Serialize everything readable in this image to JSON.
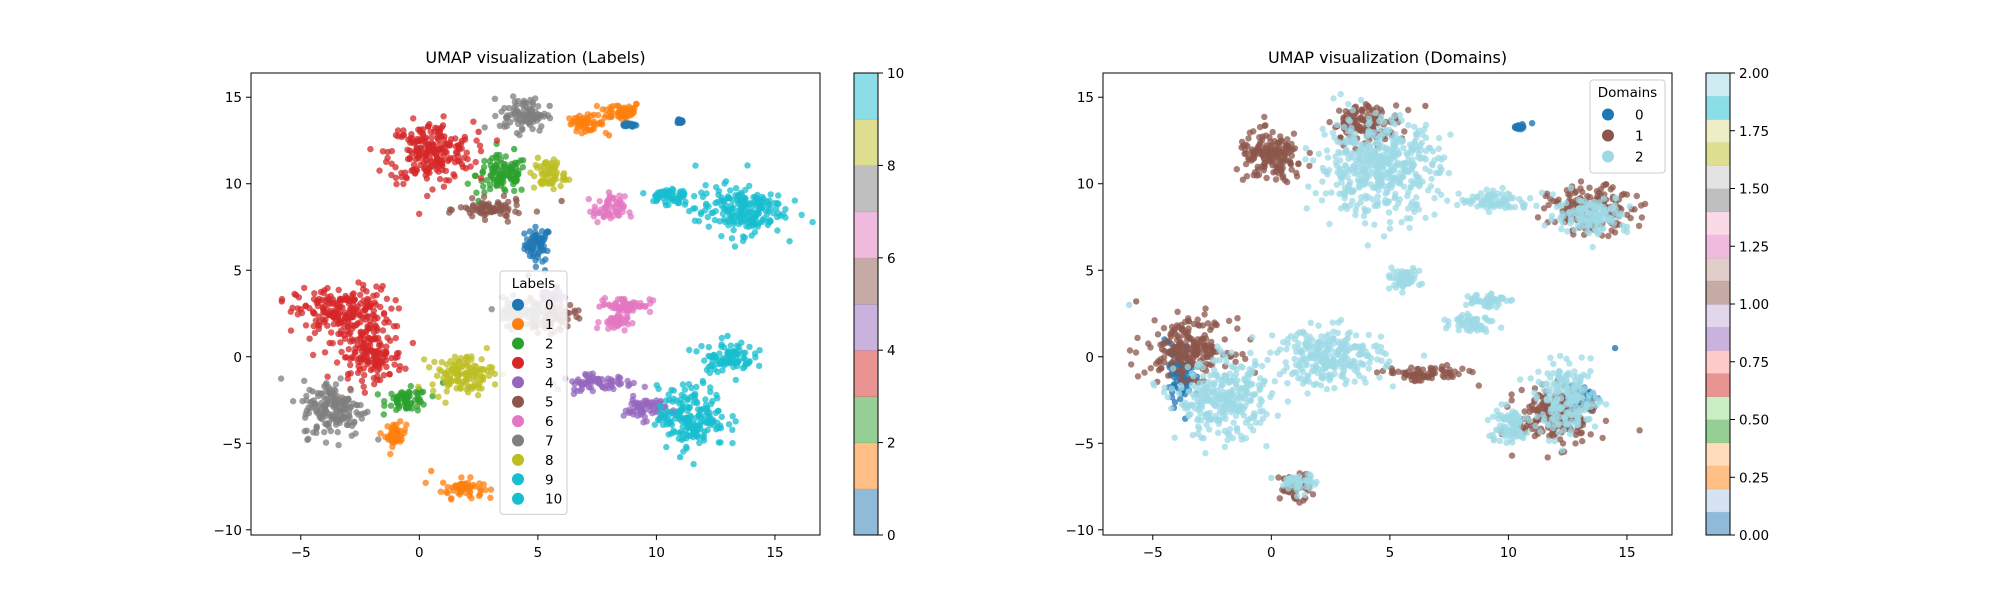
{
  "chart_data": [
    {
      "type": "scatter",
      "title": "UMAP visualization (Labels)",
      "xlabel": "",
      "ylabel": "",
      "xlim": [
        -7.1,
        16.9
      ],
      "ylim": [
        -10.3,
        16.4
      ],
      "xticks": [
        -5,
        0,
        5,
        10,
        15
      ],
      "yticks": [
        -10,
        -5,
        0,
        5,
        10,
        15
      ],
      "grid": false,
      "legend": {
        "title": "Labels",
        "placement": "center-bottom",
        "entries": [
          "0",
          "1",
          "2",
          "3",
          "4",
          "5",
          "6",
          "7",
          "8",
          "9",
          "10"
        ]
      },
      "colorbar": {
        "range": [
          0,
          10
        ],
        "ticks": [
          "0",
          "2",
          "4",
          "6",
          "8",
          "10"
        ],
        "colors": [
          "#1f77b4",
          "#ff7f0e",
          "#2ca02c",
          "#d62728",
          "#9467bd",
          "#8c564b",
          "#e377c2",
          "#7f7f7f",
          "#bcbd22",
          "#17becf"
        ]
      },
      "series": [
        {
          "name": "0",
          "color": "#1f77b4",
          "regions": [
            [
              5.0,
              6.5,
              0.5,
              0.9
            ],
            [
              8.8,
              13.4,
              0.3,
              0.1
            ],
            [
              11.0,
              13.6,
              0.1,
              0.1
            ]
          ],
          "points": [
            [
              5.3,
              5.0
            ],
            [
              4.6,
              4.7
            ],
            [
              5.8,
              4.0
            ],
            [
              9.0,
              13.3
            ]
          ]
        },
        {
          "name": "1",
          "color": "#ff7f0e",
          "regions": [
            [
              8.5,
              14.2,
              0.8,
              0.5
            ],
            [
              1.8,
              -7.6,
              0.8,
              0.5
            ],
            [
              -1.0,
              -4.5,
              0.4,
              0.6
            ],
            [
              7.0,
              13.5,
              0.7,
              0.4
            ]
          ],
          "points": [
            [
              6.5,
              13.6
            ],
            [
              8.0,
              12.8
            ],
            [
              0.5,
              -6.6
            ]
          ]
        },
        {
          "name": "2",
          "color": "#2ca02c",
          "regions": [
            [
              3.5,
              10.5,
              1.0,
              1.0
            ],
            [
              -0.5,
              -2.5,
              0.8,
              0.6
            ]
          ],
          "points": [
            [
              2.5,
              9.0
            ],
            [
              4.0,
              12.0
            ],
            [
              1.0,
              -1.5
            ]
          ]
        },
        {
          "name": "3",
          "color": "#d62728",
          "regions": [
            [
              0.5,
              11.8,
              1.6,
              1.6
            ],
            [
              -3.2,
              2.5,
              1.8,
              1.4
            ],
            [
              -2.0,
              0.0,
              1.2,
              1.2
            ]
          ],
          "points": [
            [
              -5.8,
              3.2
            ],
            [
              2.5,
              13.0
            ],
            [
              -3.0,
              -1.0
            ]
          ]
        },
        {
          "name": "4",
          "color": "#9467bd",
          "regions": [
            [
              7.5,
              -1.5,
              1.4,
              0.4
            ],
            [
              9.5,
              -3.0,
              0.8,
              0.6
            ],
            [
              5.5,
              3.5,
              0.5,
              0.4
            ]
          ],
          "points": [
            [
              7.0,
              -1.0
            ],
            [
              9.0,
              -2.5
            ]
          ]
        },
        {
          "name": "5",
          "color": "#8c564b",
          "regions": [
            [
              3.0,
              8.5,
              1.2,
              0.5
            ],
            [
              5.5,
              2.3,
              1.0,
              0.8
            ]
          ],
          "points": [
            [
              6.0,
              9.0
            ],
            [
              4.0,
              3.0
            ]
          ]
        },
        {
          "name": "6",
          "color": "#e377c2",
          "regions": [
            [
              8.7,
              3.0,
              1.0,
              0.4
            ],
            [
              8.2,
              2.0,
              0.5,
              0.4
            ],
            [
              8.0,
              8.5,
              0.6,
              0.7
            ]
          ],
          "points": [
            [
              7.6,
              2.9
            ],
            [
              8.0,
              9.5
            ]
          ]
        },
        {
          "name": "7",
          "color": "#7f7f7f",
          "regions": [
            [
              4.4,
              14.0,
              0.9,
              0.9
            ],
            [
              -3.6,
              -3.0,
              1.2,
              1.5
            ],
            [
              4.2,
              2.6,
              0.9,
              0.7
            ]
          ],
          "points": [
            [
              5.5,
              14.5
            ],
            [
              -4.5,
              -2.0
            ]
          ]
        },
        {
          "name": "8",
          "color": "#bcbd22",
          "regions": [
            [
              1.8,
              -1.0,
              1.2,
              1.0
            ],
            [
              5.5,
              10.5,
              0.6,
              0.8
            ]
          ],
          "points": [
            [
              2.0,
              0.0
            ],
            [
              5.0,
              11.5
            ]
          ]
        },
        {
          "name": "9",
          "color": "#17becf",
          "regions": [
            [
              13.5,
              8.5,
              1.7,
              1.3
            ],
            [
              11.5,
              -3.5,
              1.3,
              1.6
            ],
            [
              13.0,
              0.0,
              1.0,
              0.8
            ]
          ],
          "points": [
            [
              13.0,
              1.2
            ],
            [
              11.0,
              -5.8
            ]
          ]
        },
        {
          "name": "10",
          "color": "#17becf",
          "regions": [
            [
              10.5,
              9.3,
              0.8,
              0.5
            ]
          ],
          "points": [
            [
              10.0,
              9.0
            ]
          ]
        }
      ]
    },
    {
      "type": "scatter",
      "title": "UMAP visualization (Domains)",
      "xlabel": "",
      "ylabel": "",
      "xlim": [
        -7.1,
        16.9
      ],
      "ylim": [
        -10.3,
        16.4
      ],
      "xticks": [
        -5,
        0,
        5,
        10,
        15
      ],
      "yticks": [
        -10,
        -5,
        0,
        5,
        10,
        15
      ],
      "grid": false,
      "legend": {
        "title": "Domains",
        "placement": "top-right",
        "entries": [
          "0",
          "1",
          "2"
        ]
      },
      "colorbar": {
        "range": [
          0,
          2
        ],
        "ticks": [
          "0.00",
          "0.25",
          "0.50",
          "0.75",
          "1.00",
          "1.25",
          "1.50",
          "1.75",
          "2.00"
        ],
        "colors": [
          "#1f77b4",
          "#aec7e8",
          "#ff7f0e",
          "#ffbb78",
          "#2ca02c",
          "#98df8a",
          "#d62728",
          "#ff9896",
          "#9467bd",
          "#c5b0d5",
          "#8c564b",
          "#c49c94",
          "#e377c2",
          "#f7b6d2",
          "#7f7f7f",
          "#c7c7c7",
          "#bcbd22",
          "#dbdb8d",
          "#17becf",
          "#9edae5"
        ]
      },
      "series": [
        {
          "name": "0",
          "color": "#1f77b4",
          "regions": [
            [
              -3.8,
              -1.0,
              0.5,
              1.5
            ],
            [
              13.0,
              -2.5,
              0.6,
              0.8
            ],
            [
              10.5,
              13.3,
              0.2,
              0.1
            ]
          ],
          "points": [
            [
              11.0,
              13.5
            ],
            [
              -4.5,
              1.0
            ],
            [
              14.5,
              0.5
            ]
          ]
        },
        {
          "name": "1",
          "color": "#8c564b",
          "regions": [
            [
              0.0,
              11.5,
              1.3,
              1.3
            ],
            [
              -3.5,
              0.5,
              1.6,
              1.5
            ],
            [
              6.5,
              -1.0,
              1.6,
              0.4
            ],
            [
              12.0,
              -3.5,
              1.5,
              1.5
            ],
            [
              1.0,
              -7.5,
              0.6,
              0.7
            ],
            [
              13.5,
              8.5,
              1.6,
              1.2
            ],
            [
              4.0,
              13.5,
              1.3,
              1.0
            ]
          ],
          "points": [
            [
              -5.7,
              3.2
            ],
            [
              6.5,
              14.5
            ]
          ]
        },
        {
          "name": "2",
          "color": "#9edae5",
          "regions": [
            [
              4.5,
              11.0,
              2.3,
              2.5
            ],
            [
              13.5,
              8.2,
              1.4,
              1.0
            ],
            [
              9.5,
              9.0,
              1.4,
              0.5
            ],
            [
              -2.0,
              -2.5,
              1.8,
              2.0
            ],
            [
              2.5,
              0.0,
              2.0,
              1.5
            ],
            [
              12.5,
              -2.5,
              1.2,
              1.8
            ],
            [
              5.5,
              4.5,
              0.7,
              0.5
            ],
            [
              8.5,
              2.0,
              0.8,
              0.5
            ],
            [
              9.0,
              3.3,
              0.8,
              0.4
            ],
            [
              10.0,
              -4.0,
              0.8,
              1.0
            ],
            [
              1.2,
              -7.3,
              0.6,
              0.5
            ]
          ],
          "points": [
            [
              -6.0,
              3.0
            ],
            [
              15.0,
              7.5
            ],
            [
              0.0,
              -7.0
            ]
          ]
        }
      ]
    }
  ]
}
